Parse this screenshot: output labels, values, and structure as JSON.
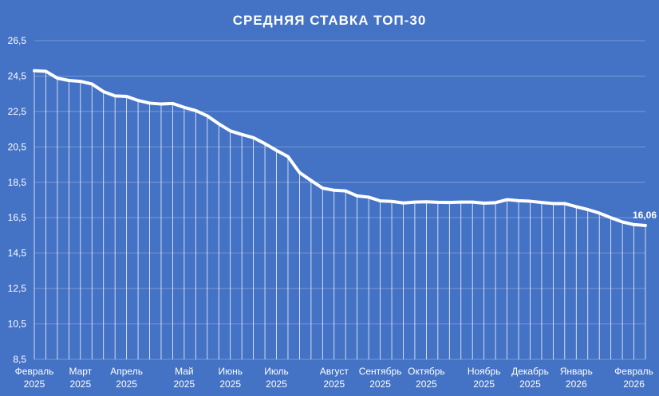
{
  "chart_data": {
    "type": "line",
    "title": "СРЕДНЯЯ СТАВКА ТОП-30",
    "xlabel": "",
    "ylabel": "",
    "ylim": [
      8.5,
      26.5
    ],
    "yticks": [
      "8,5",
      "10,5",
      "12,5",
      "14,5",
      "16,5",
      "18,5",
      "20,5",
      "22,5",
      "24,5",
      "26,5"
    ],
    "xtick_labels": [
      {
        "month": "Февраль",
        "year": "2025",
        "index": 0
      },
      {
        "month": "Март",
        "year": "2025",
        "index": 4
      },
      {
        "month": "Апрель",
        "year": "2025",
        "index": 8
      },
      {
        "month": "Май",
        "year": "2025",
        "index": 13
      },
      {
        "month": "Июнь",
        "year": "2025",
        "index": 17
      },
      {
        "month": "Июль",
        "year": "2025",
        "index": 21
      },
      {
        "month": "Август",
        "year": "2025",
        "index": 26
      },
      {
        "month": "Сентябрь",
        "year": "2025",
        "index": 30
      },
      {
        "month": "Октябрь",
        "year": "2025",
        "index": 34
      },
      {
        "month": "Ноябрь",
        "year": "2025",
        "index": 39
      },
      {
        "month": "Декабрь",
        "year": "2025",
        "index": 43
      },
      {
        "month": "Январь",
        "year": "2026",
        "index": 47
      },
      {
        "month": "Февраль",
        "year": "2026",
        "index": 52
      }
    ],
    "series": [
      {
        "values": [
          24.8,
          24.77,
          24.38,
          24.25,
          24.2,
          24.05,
          23.62,
          23.38,
          23.35,
          23.12,
          22.97,
          22.92,
          22.95,
          22.73,
          22.55,
          22.25,
          21.8,
          21.4,
          21.2,
          21.02,
          20.68,
          20.3,
          19.95,
          19.05,
          18.6,
          18.17,
          18.05,
          18.01,
          17.73,
          17.66,
          17.45,
          17.42,
          17.33,
          17.38,
          17.4,
          17.37,
          17.36,
          17.38,
          17.38,
          17.32,
          17.35,
          17.52,
          17.46,
          17.43,
          17.36,
          17.3,
          17.3,
          17.12,
          16.96,
          16.76,
          16.5,
          16.26,
          16.11,
          16.06
        ]
      }
    ],
    "data_labels": [
      {
        "index": 53,
        "text": "16,06"
      }
    ],
    "grid": true,
    "drop_lines": true,
    "colors": {
      "background": "#4472c4",
      "line": "#ffffff",
      "grid": "#7a9ad6"
    }
  }
}
